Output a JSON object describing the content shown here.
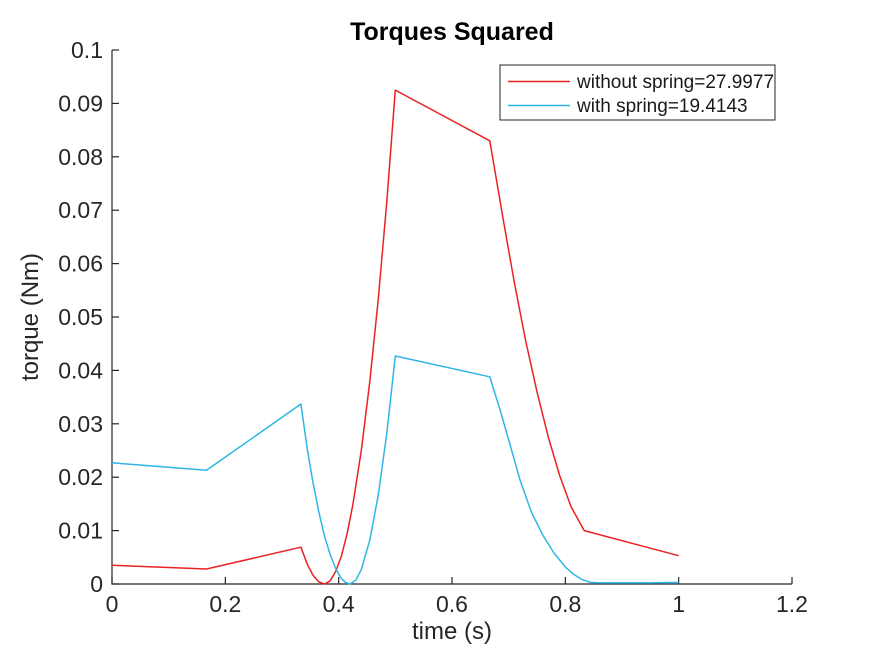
{
  "chart_data": {
    "type": "line",
    "title": "Torques Squared",
    "xlabel": "time (s)",
    "ylabel": "torque (Nm)",
    "xlim": [
      0,
      1.2
    ],
    "ylim": [
      0,
      0.1
    ],
    "xticks": [
      0,
      0.2,
      0.4,
      0.6,
      0.8,
      1,
      1.2
    ],
    "xtick_labels": [
      "0",
      "0.2",
      "0.4",
      "0.6",
      "0.8",
      "1",
      "1.2"
    ],
    "yticks": [
      0,
      0.01,
      0.02,
      0.03,
      0.04,
      0.05,
      0.06,
      0.07,
      0.08,
      0.09,
      0.1
    ],
    "ytick_labels": [
      "0",
      "0.01",
      "0.02",
      "0.03",
      "0.04",
      "0.05",
      "0.06",
      "0.07",
      "0.08",
      "0.09",
      "0.1"
    ],
    "grid": false,
    "box": false,
    "tick_direction": "in",
    "background_color": "#ffffff",
    "axis_color": "#262626",
    "legend": {
      "position": "top-right",
      "border_color": "#262626",
      "background_color": "#ffffff"
    },
    "series": [
      {
        "name": "without spring=27.9977",
        "color": "#ec2121",
        "points": [
          [
            0,
            0.0035
          ],
          [
            0.1667,
            0.0028
          ],
          [
            0.3333,
            0.0069
          ],
          [
            0.345,
            0.0036
          ],
          [
            0.355,
            0.0016
          ],
          [
            0.365,
            0.0004
          ],
          [
            0.375,
            0
          ],
          [
            0.385,
            0.0006
          ],
          [
            0.395,
            0.0024
          ],
          [
            0.405,
            0.0053
          ],
          [
            0.415,
            0.0095
          ],
          [
            0.425,
            0.0148
          ],
          [
            0.44,
            0.025
          ],
          [
            0.455,
            0.0379
          ],
          [
            0.47,
            0.0534
          ],
          [
            0.485,
            0.0716
          ],
          [
            0.5,
            0.0925
          ],
          [
            0.6667,
            0.083
          ],
          [
            0.69,
            0.0685
          ],
          [
            0.71,
            0.0565
          ],
          [
            0.73,
            0.0455
          ],
          [
            0.75,
            0.036
          ],
          [
            0.77,
            0.0275
          ],
          [
            0.79,
            0.0203
          ],
          [
            0.81,
            0.0145
          ],
          [
            0.8333,
            0.01
          ],
          [
            1,
            0.0053
          ]
        ]
      },
      {
        "name": "with spring=19.4143",
        "color": "#2eb6e6",
        "points": [
          [
            0,
            0.0227
          ],
          [
            0.1667,
            0.0213
          ],
          [
            0.3333,
            0.0337
          ],
          [
            0.345,
            0.025
          ],
          [
            0.355,
            0.0188
          ],
          [
            0.365,
            0.0135
          ],
          [
            0.375,
            0.009
          ],
          [
            0.385,
            0.0055
          ],
          [
            0.395,
            0.0028
          ],
          [
            0.405,
            0.001
          ],
          [
            0.4125,
            0.00025
          ],
          [
            0.42,
            0
          ],
          [
            0.43,
            0.0007
          ],
          [
            0.44,
            0.0027
          ],
          [
            0.455,
            0.0082
          ],
          [
            0.47,
            0.0167
          ],
          [
            0.485,
            0.0282
          ],
          [
            0.5,
            0.0427
          ],
          [
            0.6667,
            0.0388
          ],
          [
            0.685,
            0.0325
          ],
          [
            0.7,
            0.027
          ],
          [
            0.72,
            0.0195
          ],
          [
            0.74,
            0.0135
          ],
          [
            0.76,
            0.0092
          ],
          [
            0.78,
            0.0058
          ],
          [
            0.8,
            0.0032
          ],
          [
            0.815,
            0.0018
          ],
          [
            0.83,
            0.0008
          ],
          [
            0.845,
            0.0003
          ],
          [
            0.86,
            0.0002
          ],
          [
            0.9,
            0.0002
          ],
          [
            0.95,
            0.0002
          ],
          [
            1,
            0.0003
          ]
        ]
      }
    ]
  }
}
